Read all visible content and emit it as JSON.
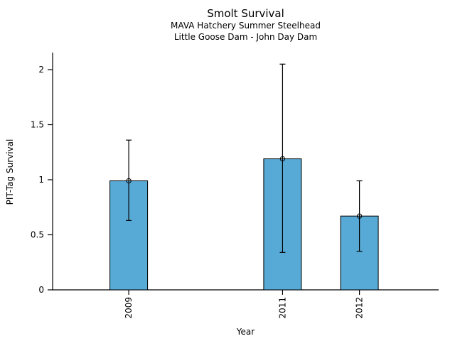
{
  "chart_data": {
    "type": "bar",
    "title": "Smolt Survival",
    "subtitle": [
      "MAVA Hatchery Summer Steelhead",
      "Little Goose Dam - John Day Dam"
    ],
    "xlabel": "Year",
    "ylabel": "PIT-Tag Survival",
    "categories": [
      "2009",
      "2011",
      "2012"
    ],
    "x": [
      2009,
      2011,
      2012
    ],
    "values": [
      0.99,
      1.19,
      0.67
    ],
    "error_low": [
      0.63,
      0.34,
      0.35
    ],
    "error_high": [
      1.36,
      2.05,
      0.99
    ],
    "yticks": [
      0,
      0.5,
      1,
      1.5,
      2
    ],
    "ytick_labels": [
      "0",
      "0.5",
      "1",
      "1.5",
      "2"
    ],
    "ylim": [
      0,
      2.155
    ],
    "xlim": [
      2008.01,
      2013.03
    ],
    "bar_width_years": 0.49,
    "grid": false,
    "legend_position": "none",
    "marker": "open-circle",
    "colors": {
      "bar_fill": "#58aad6",
      "bar_edge": "#000000",
      "error_bar": "#000000",
      "axis": "#000000",
      "background": "#ffffff"
    }
  }
}
